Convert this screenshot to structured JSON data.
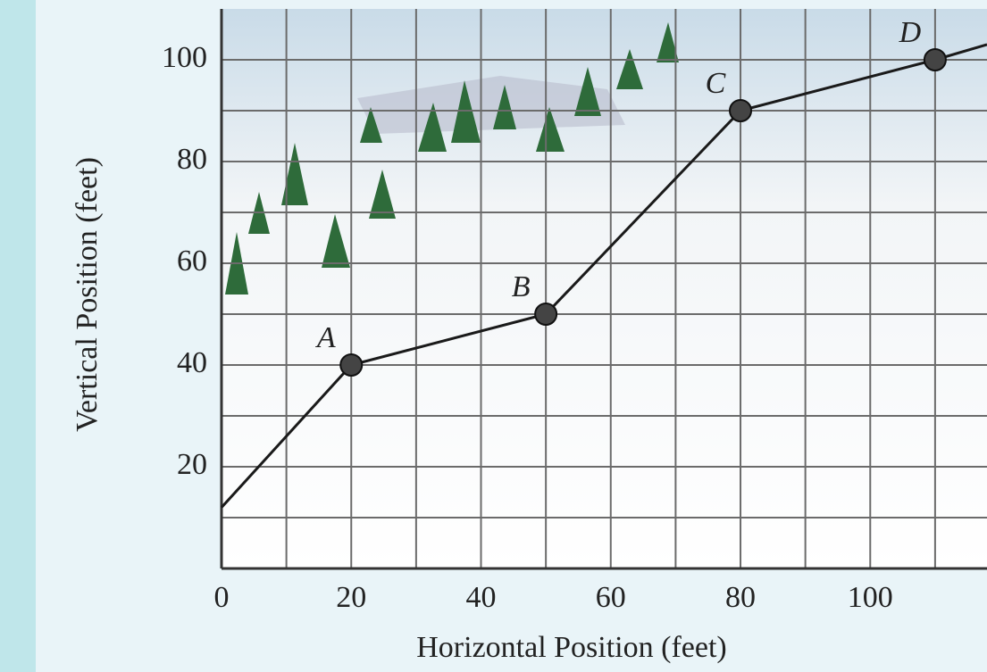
{
  "chart_data": {
    "type": "line",
    "x_label": "Horizontal Position (feet)",
    "y_label": "Vertical Position (feet)",
    "x": [
      0,
      20,
      50,
      80,
      110,
      118
    ],
    "series": [
      {
        "color": "#1a1a1a",
        "values": [
          12,
          40,
          50,
          90,
          100,
          103
        ],
        "point_labels": [
          null,
          "A",
          "B",
          "C",
          "D",
          null
        ]
      }
    ],
    "xlim": [
      0,
      118
    ],
    "ylim": [
      0,
      110
    ],
    "xticks": [
      0,
      20,
      40,
      60,
      80,
      100
    ],
    "yticks": [
      20,
      40,
      60,
      80,
      100
    ],
    "xgrid": [
      10,
      20,
      30,
      40,
      50,
      60,
      70,
      80,
      90,
      100,
      110
    ],
    "ygrid": [
      10,
      20,
      30,
      40,
      50,
      60,
      70,
      80,
      90,
      100
    ],
    "grid": true
  }
}
